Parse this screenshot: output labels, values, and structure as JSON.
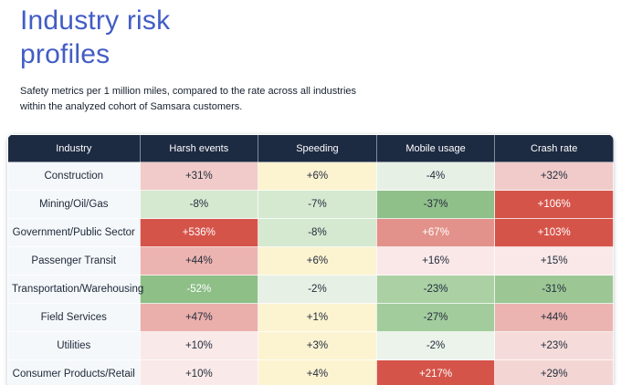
{
  "page": {
    "title": "Industry risk profiles",
    "subtitle": "Safety metrics per 1 million miles, compared to the rate across all industries within the analyzed cohort of Samsara customers."
  },
  "colors": {
    "title_blue": "#425dc5",
    "header_bg": "#1c2a42",
    "header_text": "#ffffff",
    "industry_col_bg": "#f5f8fb",
    "dark_text": "#232d3d",
    "white_text": "#ffffff",
    "strong_red": "#d5544a",
    "salmon": "#e2928a",
    "light_yellow": "#fcf3d1",
    "strong_green": "#8dbf87"
  },
  "table": {
    "columns": [
      "Industry",
      "Harsh events",
      "Speeding",
      "Mobile usage",
      "Crash rate"
    ],
    "rows": [
      {
        "industry": "Construction",
        "cells": [
          {
            "v": "+31%",
            "bg": "#f0cbc9",
            "fg": "#232d3d"
          },
          {
            "v": "+6%",
            "bg": "#fcf3d1",
            "fg": "#232d3d"
          },
          {
            "v": "-4%",
            "bg": "#e7f0e5",
            "fg": "#232d3d"
          },
          {
            "v": "+32%",
            "bg": "#f0cbc9",
            "fg": "#232d3d"
          }
        ]
      },
      {
        "industry": "Mining/Oil/Gas",
        "cells": [
          {
            "v": "-8%",
            "bg": "#d5e9d0",
            "fg": "#232d3d"
          },
          {
            "v": "-7%",
            "bg": "#d5e9d0",
            "fg": "#232d3d"
          },
          {
            "v": "-37%",
            "bg": "#90c08a",
            "fg": "#232d3d"
          },
          {
            "v": "+106%",
            "bg": "#d5544a",
            "fg": "#ffffff"
          }
        ]
      },
      {
        "industry": "Government/Public Sector",
        "cells": [
          {
            "v": "+536%",
            "bg": "#d5544a",
            "fg": "#ffffff"
          },
          {
            "v": "-8%",
            "bg": "#d5e9d0",
            "fg": "#232d3d"
          },
          {
            "v": "+67%",
            "bg": "#e2928a",
            "fg": "#ffffff"
          },
          {
            "v": "+103%",
            "bg": "#d5544a",
            "fg": "#ffffff"
          }
        ]
      },
      {
        "industry": "Passenger Transit",
        "cells": [
          {
            "v": "+44%",
            "bg": "#ecb4b0",
            "fg": "#232d3d"
          },
          {
            "v": "+6%",
            "bg": "#fcf3d1",
            "fg": "#232d3d"
          },
          {
            "v": "+16%",
            "bg": "#f9e8e7",
            "fg": "#232d3d"
          },
          {
            "v": "+15%",
            "bg": "#f9e8e7",
            "fg": "#232d3d"
          }
        ]
      },
      {
        "industry": "Transportation/Warehousing",
        "cells": [
          {
            "v": "-52%",
            "bg": "#8dbf87",
            "fg": "#ffffff"
          },
          {
            "v": "-2%",
            "bg": "#e7f0e5",
            "fg": "#232d3d"
          },
          {
            "v": "-23%",
            "bg": "#aad0a4",
            "fg": "#232d3d"
          },
          {
            "v": "-31%",
            "bg": "#9cc795",
            "fg": "#232d3d"
          }
        ]
      },
      {
        "industry": "Field Services",
        "cells": [
          {
            "v": "+47%",
            "bg": "#eaafab",
            "fg": "#232d3d"
          },
          {
            "v": "+1%",
            "bg": "#fcf3d1",
            "fg": "#232d3d"
          },
          {
            "v": "-27%",
            "bg": "#a3cc9d",
            "fg": "#232d3d"
          },
          {
            "v": "+44%",
            "bg": "#ecb4b0",
            "fg": "#232d3d"
          }
        ]
      },
      {
        "industry": "Utilities",
        "cells": [
          {
            "v": "+10%",
            "bg": "#f9e9e8",
            "fg": "#232d3d"
          },
          {
            "v": "+3%",
            "bg": "#fcf3d1",
            "fg": "#232d3d"
          },
          {
            "v": "-2%",
            "bg": "#ecf3ea",
            "fg": "#232d3d"
          },
          {
            "v": "+23%",
            "bg": "#f5dcda",
            "fg": "#232d3d"
          }
        ]
      },
      {
        "industry": "Consumer Products/Retail",
        "cells": [
          {
            "v": "+10%",
            "bg": "#f9e9e8",
            "fg": "#232d3d"
          },
          {
            "v": "+4%",
            "bg": "#fcf3d1",
            "fg": "#232d3d"
          },
          {
            "v": "+217%",
            "bg": "#d5544a",
            "fg": "#ffffff"
          },
          {
            "v": "+29%",
            "bg": "#f3d6d4",
            "fg": "#232d3d"
          }
        ]
      }
    ]
  },
  "chart_data": {
    "type": "heatmap",
    "title": "Industry risk profiles",
    "subtitle": "Safety metrics per 1 million miles, compared to the rate across all industries within the analyzed cohort of Samsara customers.",
    "rows": [
      "Construction",
      "Mining/Oil/Gas",
      "Government/Public Sector",
      "Passenger Transit",
      "Transportation/Warehousing",
      "Field Services",
      "Utilities",
      "Consumer Products/Retail"
    ],
    "columns": [
      "Harsh events",
      "Speeding",
      "Mobile usage",
      "Crash rate"
    ],
    "values_pct": [
      [
        31,
        6,
        -4,
        32
      ],
      [
        -8,
        -7,
        -37,
        106
      ],
      [
        536,
        -8,
        67,
        103
      ],
      [
        44,
        6,
        16,
        15
      ],
      [
        -52,
        -2,
        -23,
        -31
      ],
      [
        47,
        1,
        -27,
        44
      ],
      [
        10,
        3,
        -2,
        23
      ],
      [
        10,
        4,
        217,
        29
      ]
    ],
    "legend_position": "none",
    "color_encoding": "red = above cohort rate, green = below cohort rate, yellow = near zero positive"
  }
}
